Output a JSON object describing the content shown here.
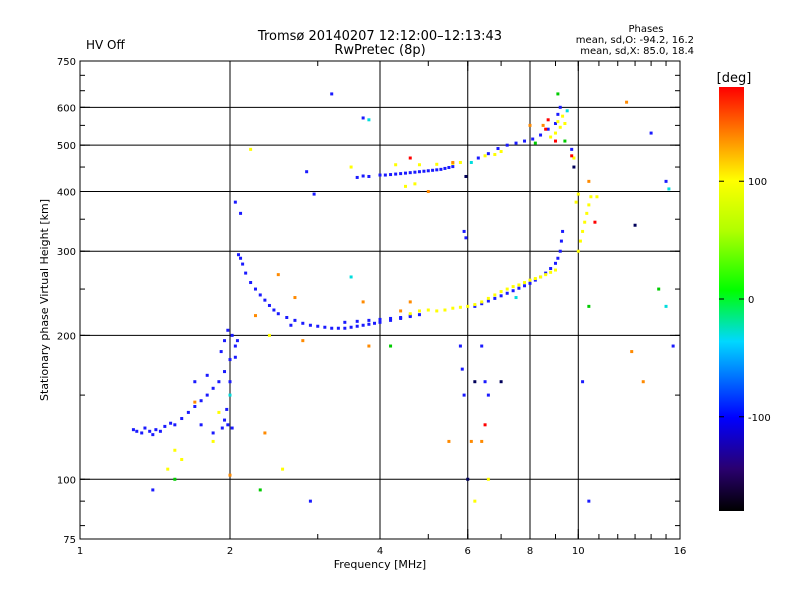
{
  "header": {
    "status_label": "HV Off",
    "status_color": "#e00000",
    "title_line1": "Tromsø 20140207 12:12:00–12:13:43",
    "title_line2": "RwPretec (8p)",
    "stats_title": "Phases",
    "stats_line1": "mean, sd,O: -94.2, 16.2",
    "stats_line2": "mean, sd,X:  85.0, 18.4"
  },
  "chart_data": {
    "type": "scatter",
    "xlabel": "Frequency [MHz]",
    "ylabel": "Stationary phase Virtual Height [km]",
    "xscale": "log",
    "yscale": "log",
    "xlim": [
      1,
      16
    ],
    "ylim": [
      75,
      750
    ],
    "x_ticks": [
      1,
      2,
      4,
      6,
      8,
      10,
      16
    ],
    "x_tick_labels": [
      "1",
      "2",
      "4",
      "6",
      "8",
      "10",
      "16"
    ],
    "x_grid": [
      2,
      4,
      6,
      8,
      10
    ],
    "y_ticks": [
      75,
      100,
      200,
      300,
      400,
      500,
      600,
      750
    ],
    "y_tick_labels": [
      "75",
      "100",
      "200",
      "300",
      "400",
      "500",
      "600",
      "750"
    ],
    "y_grid": [
      100,
      200,
      300,
      400,
      500,
      600
    ],
    "grid": true,
    "colorbar": {
      "label": "[deg]",
      "range": [
        -180,
        180
      ],
      "ticks": [
        100,
        0,
        -100
      ],
      "tick_labels": [
        "100",
        "0",
        "-100"
      ]
    },
    "series": [
      {
        "color": "#1a1aff",
        "points": [
          [
            1.28,
            127
          ],
          [
            1.3,
            126
          ],
          [
            1.33,
            125
          ],
          [
            1.35,
            128
          ],
          [
            1.38,
            126
          ],
          [
            1.4,
            124
          ],
          [
            1.42,
            127
          ],
          [
            1.45,
            126
          ],
          [
            1.48,
            129
          ],
          [
            1.52,
            131
          ],
          [
            1.55,
            130
          ],
          [
            1.6,
            134
          ],
          [
            1.65,
            138
          ],
          [
            1.7,
            142
          ],
          [
            1.75,
            146
          ],
          [
            1.8,
            150
          ],
          [
            1.85,
            155
          ],
          [
            1.9,
            160
          ],
          [
            1.95,
            168
          ],
          [
            2.0,
            178
          ],
          [
            2.05,
            190
          ],
          [
            1.92,
            185
          ],
          [
            1.95,
            195
          ],
          [
            1.98,
            205
          ],
          [
            2.02,
            200
          ],
          [
            2.0,
            160
          ],
          [
            1.97,
            140
          ],
          [
            1.95,
            133
          ],
          [
            1.98,
            130
          ],
          [
            2.02,
            128
          ],
          [
            1.93,
            128
          ],
          [
            2.05,
            180
          ],
          [
            2.07,
            195
          ],
          [
            2.08,
            295
          ],
          [
            2.1,
            290
          ],
          [
            2.12,
            282
          ],
          [
            2.15,
            270
          ],
          [
            2.2,
            258
          ],
          [
            2.25,
            250
          ],
          [
            2.3,
            243
          ],
          [
            2.35,
            237
          ],
          [
            2.4,
            231
          ],
          [
            2.45,
            226
          ],
          [
            2.5,
            222
          ],
          [
            2.6,
            218
          ],
          [
            2.7,
            215
          ],
          [
            2.8,
            212
          ],
          [
            2.9,
            210
          ],
          [
            3.0,
            209
          ],
          [
            3.1,
            208
          ],
          [
            3.2,
            207
          ],
          [
            3.3,
            207
          ],
          [
            3.4,
            207
          ],
          [
            3.5,
            208
          ],
          [
            3.6,
            209
          ],
          [
            3.7,
            210
          ],
          [
            3.8,
            211
          ],
          [
            3.9,
            212
          ],
          [
            4.0,
            213
          ],
          [
            4.2,
            215
          ],
          [
            4.4,
            217
          ],
          [
            4.6,
            219
          ],
          [
            4.8,
            221
          ],
          [
            3.4,
            213
          ],
          [
            3.6,
            214
          ],
          [
            3.8,
            215
          ],
          [
            4.0,
            216
          ],
          [
            4.2,
            217
          ],
          [
            4.4,
            218
          ],
          [
            4.6,
            220
          ],
          [
            6.2,
            230
          ],
          [
            6.4,
            233
          ],
          [
            6.6,
            236
          ],
          [
            6.8,
            239
          ],
          [
            7.0,
            242
          ],
          [
            7.2,
            245
          ],
          [
            7.4,
            248
          ],
          [
            7.6,
            251
          ],
          [
            7.8,
            254
          ],
          [
            8.0,
            257
          ],
          [
            8.2,
            261
          ],
          [
            8.4,
            265
          ],
          [
            8.6,
            270
          ],
          [
            8.8,
            276
          ],
          [
            9.0,
            283
          ],
          [
            9.1,
            290
          ],
          [
            9.2,
            300
          ],
          [
            9.25,
            315
          ],
          [
            9.3,
            330
          ],
          [
            4.0,
            433
          ],
          [
            4.1,
            433
          ],
          [
            4.2,
            434
          ],
          [
            4.3,
            435
          ],
          [
            4.4,
            436
          ],
          [
            4.5,
            437
          ],
          [
            4.6,
            438
          ],
          [
            4.7,
            439
          ],
          [
            4.8,
            440
          ],
          [
            4.9,
            441
          ],
          [
            5.0,
            442
          ],
          [
            5.1,
            443
          ],
          [
            5.2,
            444
          ],
          [
            5.3,
            445
          ],
          [
            5.4,
            447
          ],
          [
            5.5,
            449
          ],
          [
            5.6,
            451
          ],
          [
            3.6,
            428
          ],
          [
            3.8,
            430
          ],
          [
            3.7,
            431
          ],
          [
            6.3,
            470
          ],
          [
            6.6,
            480
          ],
          [
            6.9,
            492
          ],
          [
            7.2,
            500
          ],
          [
            7.5,
            505
          ],
          [
            7.8,
            510
          ],
          [
            8.1,
            515
          ],
          [
            8.4,
            525
          ],
          [
            8.7,
            540
          ],
          [
            9.0,
            555
          ],
          [
            9.1,
            580
          ],
          [
            9.2,
            600
          ],
          [
            3.2,
            640
          ],
          [
            3.7,
            570
          ],
          [
            2.85,
            440
          ],
          [
            2.95,
            395
          ],
          [
            5.9,
            330
          ],
          [
            5.95,
            320
          ],
          [
            5.8,
            190
          ],
          [
            5.85,
            170
          ],
          [
            5.9,
            150
          ],
          [
            6.4,
            190
          ],
          [
            6.5,
            160
          ],
          [
            6.6,
            150
          ],
          [
            2.1,
            360
          ],
          [
            2.05,
            380
          ],
          [
            1.4,
            95
          ],
          [
            2.9,
            90
          ],
          [
            10.5,
            90
          ],
          [
            14.0,
            530
          ],
          [
            15.0,
            420
          ],
          [
            15.5,
            190
          ],
          [
            2.65,
            210
          ],
          [
            9.7,
            490
          ],
          [
            10.2,
            160
          ],
          [
            1.7,
            160
          ],
          [
            1.8,
            165
          ],
          [
            1.75,
            130
          ],
          [
            1.85,
            125
          ]
        ]
      },
      {
        "color": "#ffff00",
        "points": [
          [
            4.6,
            222
          ],
          [
            4.8,
            225
          ],
          [
            5.0,
            226
          ],
          [
            5.2,
            225
          ],
          [
            5.4,
            226
          ],
          [
            5.6,
            228
          ],
          [
            5.8,
            229
          ],
          [
            6.0,
            230
          ],
          [
            6.2,
            232
          ],
          [
            6.4,
            235
          ],
          [
            6.6,
            239
          ],
          [
            6.8,
            243
          ],
          [
            7.0,
            247
          ],
          [
            7.2,
            250
          ],
          [
            7.4,
            253
          ],
          [
            7.6,
            255
          ],
          [
            7.8,
            258
          ],
          [
            8.0,
            261
          ],
          [
            8.2,
            263
          ],
          [
            8.4,
            265
          ],
          [
            8.6,
            268
          ],
          [
            8.8,
            271
          ],
          [
            9.0,
            274
          ],
          [
            10.0,
            300
          ],
          [
            10.1,
            315
          ],
          [
            10.2,
            330
          ],
          [
            10.3,
            345
          ],
          [
            10.4,
            360
          ],
          [
            10.5,
            375
          ],
          [
            10.6,
            390
          ],
          [
            9.9,
            380
          ],
          [
            10.0,
            395
          ],
          [
            8.8,
            520
          ],
          [
            9.0,
            530
          ],
          [
            9.2,
            545
          ],
          [
            9.4,
            555
          ],
          [
            9.3,
            575
          ],
          [
            9.1,
            560
          ],
          [
            6.5,
            475
          ],
          [
            6.8,
            478
          ],
          [
            7.0,
            485
          ],
          [
            3.5,
            450
          ],
          [
            4.3,
            455
          ],
          [
            4.8,
            455
          ],
          [
            5.2,
            456
          ],
          [
            5.6,
            458
          ],
          [
            5.8,
            460
          ],
          [
            4.7,
            415
          ],
          [
            4.5,
            410
          ],
          [
            2.2,
            490
          ],
          [
            2.4,
            200
          ],
          [
            1.5,
            105
          ],
          [
            1.55,
            115
          ],
          [
            1.6,
            110
          ],
          [
            1.85,
            120
          ],
          [
            1.9,
            138
          ],
          [
            2.55,
            105
          ],
          [
            6.2,
            90
          ],
          [
            6.6,
            100
          ],
          [
            10.9,
            390
          ],
          [
            9.8,
            470
          ]
        ]
      },
      {
        "color": "#ff8a00",
        "points": [
          [
            2.25,
            220
          ],
          [
            2.5,
            268
          ],
          [
            2.7,
            240
          ],
          [
            3.7,
            235
          ],
          [
            4.4,
            225
          ],
          [
            4.6,
            235
          ],
          [
            5.0,
            400
          ],
          [
            5.6,
            460
          ],
          [
            5.5,
            120
          ],
          [
            6.1,
            120
          ],
          [
            6.4,
            120
          ],
          [
            2.35,
            125
          ],
          [
            1.7,
            145
          ],
          [
            12.5,
            615
          ],
          [
            12.8,
            185
          ],
          [
            13.5,
            160
          ],
          [
            8.5,
            550
          ],
          [
            8.0,
            550
          ],
          [
            10.5,
            420
          ],
          [
            2.0,
            102
          ],
          [
            3.8,
            190
          ],
          [
            2.8,
            195
          ]
        ]
      },
      {
        "color": "#ff0000",
        "points": [
          [
            8.6,
            540
          ],
          [
            8.7,
            565
          ],
          [
            9.0,
            510
          ],
          [
            9.7,
            475
          ],
          [
            4.6,
            470
          ],
          [
            6.5,
            130
          ],
          [
            10.8,
            345
          ]
        ]
      },
      {
        "color": "#00cc00",
        "points": [
          [
            2.3,
            95
          ],
          [
            9.4,
            510
          ],
          [
            9.1,
            640
          ],
          [
            10.5,
            230
          ],
          [
            1.55,
            100
          ],
          [
            8.2,
            505
          ],
          [
            4.2,
            190
          ],
          [
            14.5,
            250
          ]
        ]
      },
      {
        "color": "#00dddd",
        "points": [
          [
            3.5,
            265
          ],
          [
            3.8,
            565
          ],
          [
            6.1,
            460
          ],
          [
            7.5,
            240
          ],
          [
            15.0,
            230
          ],
          [
            2.0,
            150
          ],
          [
            9.5,
            590
          ],
          [
            15.2,
            405
          ]
        ]
      },
      {
        "color": "#00005a",
        "points": [
          [
            5.95,
            430
          ],
          [
            6.0,
            100
          ],
          [
            9.8,
            450
          ],
          [
            13.0,
            340
          ],
          [
            6.2,
            160
          ],
          [
            7.0,
            160
          ]
        ]
      }
    ]
  }
}
